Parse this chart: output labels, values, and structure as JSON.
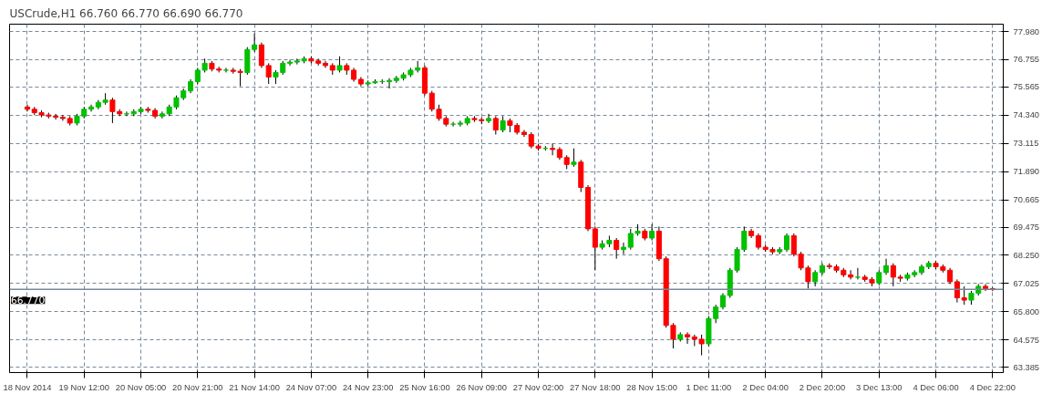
{
  "chart_data": {
    "type": "candlestick",
    "title": "USCrude,H1  66.760 66.770 66.690 66.770",
    "categories": [
      "18 Nov 2014",
      null,
      null,
      null,
      null,
      null,
      null,
      null,
      "19 Nov 12:00",
      null,
      null,
      null,
      null,
      null,
      null,
      null,
      "20 Nov 05:00",
      null,
      null,
      null,
      null,
      null,
      null,
      null,
      "20 Nov 21:00",
      null,
      null,
      null,
      null,
      null,
      null,
      null,
      "21 Nov 14:00",
      null,
      null,
      null,
      null,
      null,
      null,
      null,
      "24 Nov 07:00",
      null,
      null,
      null,
      null,
      null,
      null,
      null,
      "24 Nov 23:00",
      null,
      null,
      null,
      null,
      null,
      null,
      null,
      "25 Nov 16:00",
      null,
      null,
      null,
      null,
      null,
      null,
      null,
      "26 Nov 09:00",
      null,
      null,
      null,
      null,
      null,
      null,
      null,
      "27 Nov 02:00",
      null,
      null,
      null,
      null,
      null,
      null,
      null,
      "27 Nov 18:00",
      null,
      null,
      null,
      null,
      null,
      null,
      null,
      "28 Nov 15:00",
      null,
      null,
      null,
      null,
      null,
      null,
      null,
      "1 Dec 11:00",
      null,
      null,
      null,
      null,
      null,
      null,
      null,
      "2 Dec 04:00",
      null,
      null,
      null,
      null,
      null,
      null,
      null,
      "2 Dec 20:00",
      null,
      null,
      null,
      null,
      null,
      null,
      null,
      "3 Dec 13:00",
      null,
      null,
      null,
      null,
      null,
      null,
      null,
      "4 Dec 06:00",
      null,
      null,
      null,
      null,
      null,
      null,
      null,
      "4 Dec 22:00"
    ],
    "ohlc": [
      [
        74.7,
        74.8,
        74.5,
        74.6
      ],
      [
        74.6,
        74.7,
        74.35,
        74.45
      ],
      [
        74.45,
        74.55,
        74.25,
        74.35
      ],
      [
        74.35,
        74.45,
        74.2,
        74.3
      ],
      [
        74.3,
        74.4,
        74.15,
        74.25
      ],
      [
        74.25,
        74.35,
        74.1,
        74.2
      ],
      [
        74.2,
        74.3,
        73.9,
        74.0
      ],
      [
        74.0,
        74.4,
        73.9,
        74.3
      ],
      [
        74.3,
        74.7,
        74.2,
        74.6
      ],
      [
        74.6,
        74.8,
        74.5,
        74.7
      ],
      [
        74.7,
        75.0,
        74.6,
        74.9
      ],
      [
        74.9,
        75.3,
        74.8,
        75.0
      ],
      [
        75.0,
        75.1,
        74.0,
        74.5
      ],
      [
        74.5,
        74.6,
        74.3,
        74.4
      ],
      [
        74.4,
        74.5,
        74.3,
        74.4
      ],
      [
        74.4,
        74.6,
        74.3,
        74.5
      ],
      [
        74.5,
        74.7,
        74.4,
        74.6
      ],
      [
        74.6,
        74.7,
        74.45,
        74.55
      ],
      [
        74.55,
        74.65,
        74.2,
        74.3
      ],
      [
        74.3,
        74.5,
        74.2,
        74.4
      ],
      [
        74.4,
        74.8,
        74.3,
        74.7
      ],
      [
        74.7,
        75.2,
        74.6,
        75.1
      ],
      [
        75.1,
        75.5,
        75.0,
        75.4
      ],
      [
        75.4,
        75.9,
        75.3,
        75.8
      ],
      [
        75.8,
        76.4,
        75.7,
        76.3
      ],
      [
        76.3,
        76.8,
        76.2,
        76.6
      ],
      [
        76.6,
        76.7,
        76.25,
        76.35
      ],
      [
        76.35,
        76.45,
        76.2,
        76.3
      ],
      [
        76.3,
        76.4,
        76.2,
        76.3
      ],
      [
        76.3,
        76.4,
        76.15,
        76.25
      ],
      [
        76.25,
        76.35,
        75.6,
        76.2
      ],
      [
        76.2,
        77.3,
        76.1,
        77.2
      ],
      [
        77.2,
        77.9,
        77.1,
        77.4
      ],
      [
        77.4,
        77.5,
        76.4,
        76.5
      ],
      [
        76.5,
        76.6,
        75.7,
        76.0
      ],
      [
        76.0,
        76.3,
        75.7,
        76.2
      ],
      [
        76.2,
        76.7,
        76.1,
        76.6
      ],
      [
        76.6,
        76.75,
        76.5,
        76.65
      ],
      [
        76.65,
        76.8,
        76.55,
        76.7
      ],
      [
        76.7,
        76.9,
        76.6,
        76.8
      ],
      [
        76.8,
        76.9,
        76.6,
        76.7
      ],
      [
        76.7,
        76.8,
        76.5,
        76.6
      ],
      [
        76.6,
        76.7,
        76.4,
        76.5
      ],
      [
        76.5,
        76.6,
        76.1,
        76.3
      ],
      [
        76.3,
        76.9,
        76.2,
        76.5
      ],
      [
        76.5,
        76.6,
        76.1,
        76.3
      ],
      [
        76.3,
        76.4,
        75.8,
        75.9
      ],
      [
        75.9,
        76.0,
        75.6,
        75.7
      ],
      [
        75.7,
        75.85,
        75.6,
        75.75
      ],
      [
        75.75,
        75.9,
        75.7,
        75.8
      ],
      [
        75.8,
        75.9,
        75.7,
        75.8
      ],
      [
        75.8,
        75.95,
        75.5,
        75.85
      ],
      [
        75.85,
        76.05,
        75.75,
        75.95
      ],
      [
        75.95,
        76.2,
        75.85,
        76.1
      ],
      [
        76.1,
        76.4,
        76.0,
        76.3
      ],
      [
        76.3,
        76.7,
        76.2,
        76.4
      ],
      [
        76.4,
        76.5,
        75.2,
        75.3
      ],
      [
        75.3,
        75.4,
        74.5,
        74.6
      ],
      [
        74.6,
        74.8,
        74.1,
        74.2
      ],
      [
        74.2,
        74.3,
        73.85,
        73.95
      ],
      [
        73.95,
        74.05,
        73.85,
        73.95
      ],
      [
        73.95,
        74.1,
        73.85,
        74.0
      ],
      [
        74.0,
        74.3,
        73.9,
        74.2
      ],
      [
        74.2,
        74.3,
        74.05,
        74.15
      ],
      [
        74.15,
        74.25,
        73.95,
        74.1
      ],
      [
        74.1,
        74.4,
        74.0,
        74.2
      ],
      [
        74.2,
        74.3,
        73.5,
        73.7
      ],
      [
        73.7,
        74.3,
        73.6,
        74.1
      ],
      [
        74.1,
        74.2,
        73.6,
        73.9
      ],
      [
        73.9,
        74.0,
        73.5,
        73.6
      ],
      [
        73.6,
        73.7,
        73.4,
        73.5
      ],
      [
        73.5,
        73.6,
        72.9,
        73.0
      ],
      [
        73.0,
        73.1,
        72.8,
        72.9
      ],
      [
        72.9,
        73.0,
        72.8,
        72.9
      ],
      [
        72.9,
        73.1,
        72.6,
        72.85
      ],
      [
        72.85,
        72.95,
        72.4,
        72.5
      ],
      [
        72.5,
        72.6,
        72.0,
        72.2
      ],
      [
        72.2,
        72.9,
        72.1,
        72.3
      ],
      [
        72.3,
        72.4,
        71.0,
        71.2
      ],
      [
        71.2,
        71.3,
        69.3,
        69.4
      ],
      [
        69.4,
        69.5,
        67.6,
        68.6
      ],
      [
        68.6,
        68.9,
        68.5,
        68.75
      ],
      [
        68.75,
        69.1,
        68.6,
        68.9
      ],
      [
        68.9,
        69.0,
        68.1,
        68.5
      ],
      [
        68.5,
        68.8,
        68.3,
        68.6
      ],
      [
        68.6,
        69.4,
        68.5,
        69.2
      ],
      [
        69.2,
        69.6,
        69.1,
        69.3
      ],
      [
        69.3,
        69.4,
        68.9,
        69.0
      ],
      [
        69.0,
        69.6,
        68.9,
        69.3
      ],
      [
        69.3,
        69.5,
        68.0,
        68.1
      ],
      [
        68.1,
        68.2,
        65.1,
        65.2
      ],
      [
        65.2,
        65.3,
        64.2,
        64.6
      ],
      [
        64.6,
        64.9,
        64.5,
        64.8
      ],
      [
        64.8,
        64.9,
        64.4,
        64.7
      ],
      [
        64.7,
        64.8,
        64.3,
        64.6
      ],
      [
        64.6,
        64.8,
        63.9,
        64.4
      ],
      [
        64.4,
        65.6,
        64.3,
        65.5
      ],
      [
        65.5,
        66.1,
        65.3,
        66.0
      ],
      [
        66.0,
        66.6,
        65.9,
        66.5
      ],
      [
        66.5,
        67.7,
        66.4,
        67.6
      ],
      [
        67.6,
        68.6,
        67.5,
        68.5
      ],
      [
        68.5,
        69.5,
        68.4,
        69.3
      ],
      [
        69.3,
        69.4,
        69.0,
        69.1
      ],
      [
        69.1,
        69.2,
        68.5,
        68.6
      ],
      [
        68.6,
        68.7,
        68.4,
        68.5
      ],
      [
        68.5,
        68.6,
        68.3,
        68.4
      ],
      [
        68.4,
        68.6,
        68.3,
        68.5
      ],
      [
        68.5,
        69.2,
        68.4,
        69.1
      ],
      [
        69.1,
        69.2,
        68.2,
        68.3
      ],
      [
        68.3,
        68.4,
        67.6,
        67.7
      ],
      [
        67.7,
        67.8,
        66.8,
        67.1
      ],
      [
        67.1,
        67.6,
        66.9,
        67.5
      ],
      [
        67.5,
        67.9,
        67.4,
        67.8
      ],
      [
        67.8,
        67.9,
        67.65,
        67.75
      ],
      [
        67.75,
        67.85,
        67.5,
        67.6
      ],
      [
        67.6,
        67.7,
        67.3,
        67.4
      ],
      [
        67.4,
        67.6,
        67.2,
        67.3
      ],
      [
        67.3,
        67.7,
        67.2,
        67.3
      ],
      [
        67.3,
        67.4,
        67.1,
        67.2
      ],
      [
        67.2,
        67.3,
        66.9,
        67.05
      ],
      [
        67.05,
        67.6,
        66.95,
        67.5
      ],
      [
        67.5,
        68.1,
        67.4,
        67.8
      ],
      [
        67.8,
        67.9,
        66.9,
        67.3
      ],
      [
        67.3,
        67.4,
        67.1,
        67.25
      ],
      [
        67.25,
        67.5,
        67.15,
        67.4
      ],
      [
        67.4,
        67.6,
        67.3,
        67.5
      ],
      [
        67.5,
        67.85,
        67.4,
        67.75
      ],
      [
        67.75,
        68.0,
        67.65,
        67.9
      ],
      [
        67.9,
        68.0,
        67.65,
        67.75
      ],
      [
        67.75,
        67.85,
        67.5,
        67.6
      ],
      [
        67.6,
        67.7,
        67.0,
        67.1
      ],
      [
        67.1,
        67.2,
        66.2,
        66.4
      ],
      [
        66.4,
        66.9,
        66.1,
        66.3
      ],
      [
        66.3,
        66.7,
        66.1,
        66.6
      ],
      [
        66.6,
        67.0,
        66.5,
        66.9
      ],
      [
        66.9,
        67.0,
        66.7,
        66.8
      ],
      [
        66.8,
        66.85,
        66.69,
        66.77
      ]
    ],
    "colors": [
      "#ff0000",
      "#ff0000",
      "#ff0000",
      "#ff0000",
      "#ff0000",
      "#ff0000",
      "#ff0000",
      "#00c000",
      "#00c000",
      "#00c000",
      "#00c000",
      "#00c000",
      "#ff0000",
      "#ff0000",
      "#00c000",
      "#00c000",
      "#00c000",
      "#ff0000",
      "#ff0000",
      "#00c000",
      "#00c000",
      "#00c000",
      "#00c000",
      "#00c000",
      "#00c000",
      "#00c000",
      "#ff0000",
      "#ff0000",
      "#00c000",
      "#ff0000",
      "#ff0000",
      "#00c000",
      "#00c000",
      "#ff0000",
      "#ff0000",
      "#00c000",
      "#00c000",
      "#00c000",
      "#00c000",
      "#00c000",
      "#ff0000",
      "#ff0000",
      "#ff0000",
      "#ff0000",
      "#00c000",
      "#ff0000",
      "#ff0000",
      "#ff0000",
      "#00c000",
      "#00c000",
      "#00c000",
      "#00c000",
      "#00c000",
      "#00c000",
      "#00c000",
      "#00c000",
      "#ff0000",
      "#ff0000",
      "#ff0000",
      "#ff0000",
      "#00c000",
      "#00c000",
      "#00c000",
      "#ff0000",
      "#ff0000",
      "#00c000",
      "#ff0000",
      "#00c000",
      "#ff0000",
      "#ff0000",
      "#ff0000",
      "#ff0000",
      "#ff0000",
      "#00c000",
      "#ff0000",
      "#ff0000",
      "#ff0000",
      "#00c000",
      "#ff0000",
      "#ff0000",
      "#ff0000",
      "#00c000",
      "#00c000",
      "#ff0000",
      "#00c000",
      "#00c000",
      "#00c000",
      "#ff0000",
      "#00c000",
      "#ff0000",
      "#ff0000",
      "#ff0000",
      "#00c000",
      "#ff0000",
      "#ff0000",
      "#ff0000",
      "#00c000",
      "#00c000",
      "#00c000",
      "#00c000",
      "#00c000",
      "#00c000",
      "#ff0000",
      "#ff0000",
      "#ff0000",
      "#ff0000",
      "#00c000",
      "#00c000",
      "#ff0000",
      "#ff0000",
      "#ff0000",
      "#00c000",
      "#00c000",
      "#ff0000",
      "#ff0000",
      "#ff0000",
      "#ff0000",
      "#00c000",
      "#ff0000",
      "#ff0000",
      "#00c000",
      "#00c000",
      "#ff0000",
      "#ff0000",
      "#00c000",
      "#00c000",
      "#00c000",
      "#00c000",
      "#ff0000",
      "#ff0000",
      "#ff0000",
      "#ff0000",
      "#ff0000",
      "#00c000",
      "#00c000",
      "#ff0000",
      "#ff0000"
    ],
    "ylim": [
      63.15,
      78.3
    ],
    "yticks": [
      {
        "value": 63.385,
        "label": "63.385"
      },
      {
        "value": 64.575,
        "label": "64.575"
      },
      {
        "value": 65.8,
        "label": "65.800"
      },
      {
        "value": 67.025,
        "label": "67.025"
      },
      {
        "value": 68.25,
        "label": "68.250"
      },
      {
        "value": 69.475,
        "label": "69.475"
      },
      {
        "value": 70.665,
        "label": "70.665"
      },
      {
        "value": 71.89,
        "label": "71.890"
      },
      {
        "value": 73.115,
        "label": "73.115"
      },
      {
        "value": 74.34,
        "label": "74.340"
      },
      {
        "value": 75.565,
        "label": "75.565"
      },
      {
        "value": 76.755,
        "label": "76.755"
      },
      {
        "value": 77.98,
        "label": "77.980"
      }
    ],
    "ref_lines": [
      {
        "axis": "y",
        "value": 66.77,
        "label": "66.770",
        "color": "#778899"
      }
    ],
    "grid": true
  }
}
